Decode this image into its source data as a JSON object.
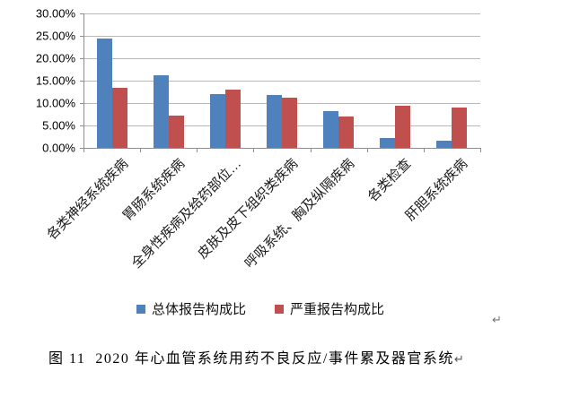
{
  "chart_data": {
    "type": "bar",
    "title": "",
    "categories": [
      "各类神经系统疾病",
      "胃肠系统疾病",
      "全身性疾病及给药部位…",
      "皮肤及皮下组织类疾病",
      "呼吸系统、胸及纵隔疾病",
      "各类检查",
      "肝胆系统疾病"
    ],
    "series": [
      {
        "name": "总体报告构成比",
        "color": "#4F81BD",
        "values": [
          24.3,
          16.2,
          12.0,
          11.8,
          8.2,
          2.2,
          1.6
        ]
      },
      {
        "name": "严重报告构成比",
        "color": "#C0504D",
        "values": [
          13.4,
          7.1,
          13.0,
          11.1,
          7.0,
          9.4,
          8.9
        ]
      }
    ],
    "xlabel": "",
    "ylabel": "",
    "ylim": [
      0,
      30
    ],
    "ytick_step": 5,
    "ytick_labels": [
      "0.00%",
      "5.00%",
      "10.00%",
      "15.00%",
      "20.00%",
      "25.00%",
      "30.00%"
    ],
    "grid": true,
    "legend_position": "bottom",
    "units": "percent"
  },
  "colors": {
    "series_blue": "#4F81BD",
    "series_red": "#C0504D",
    "gridline": "#b8b8b8",
    "axis": "#8e8e8e"
  },
  "caption": {
    "text": "图 11  2020 年心血管系统用药不良反应/事件累及器官系统",
    "return_mark": "↵"
  },
  "marks": {
    "stray_return": "↵"
  }
}
